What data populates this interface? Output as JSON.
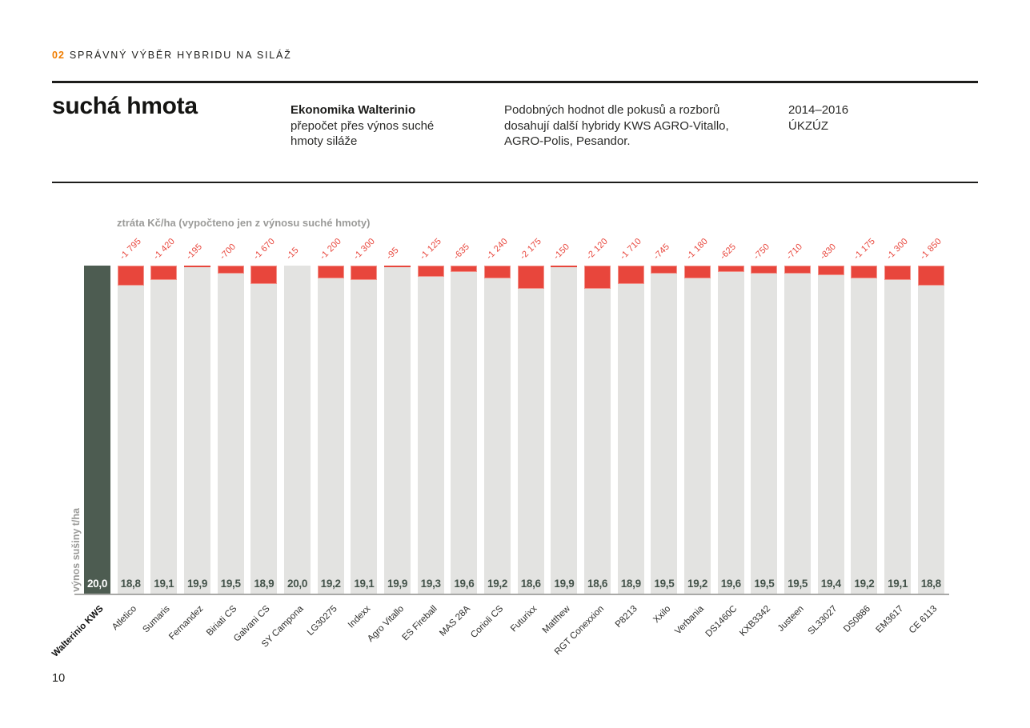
{
  "header": {
    "kicker_number": "02",
    "kicker_title": "SPRÁVNÝ VÝBĚR HYBRIDU NA SILÁŽ"
  },
  "intro": {
    "title": "suchá hmota",
    "subtitle_bold": "Ekonomika Walterinio",
    "subtitle_lines": [
      "přepočet přes výnos suché",
      "hmoty siláže"
    ],
    "description_lines": [
      "Podobných hodnot dle pokusů a rozborů",
      "dosahují další hybridy KWS AGRO-Vitallo,",
      "AGRO-Polis, Pesandor."
    ],
    "period": "2014–2016",
    "source": "ÚKZÚZ"
  },
  "chart_data": {
    "type": "bar",
    "title": "ztráta Kč/ha (vypočteno jen z výnosu suché hmoty)",
    "ylabel": "výnos sušiny t/ha",
    "ylim": [
      0,
      20
    ],
    "reference_category": "Walterinio KWS",
    "reference_value": 20.0,
    "categories": [
      "Walterinio KWS",
      "Atletico",
      "Sumaris",
      "Fernandez",
      "Biriati CS",
      "Galvani CS",
      "SY Campona",
      "LG30275",
      "Indexx",
      "Agro Vitallo",
      "ES Fireball",
      "MAS 28A",
      "Corioli CS",
      "Futurixx",
      "Matthew",
      "RGT Conexxion",
      "P8213",
      "Xxilo",
      "Verbania",
      "DS1460C",
      "KXB3342",
      "Justeen",
      "SL33027",
      "DS0886",
      "EM3617",
      "CE 6113"
    ],
    "values": [
      20.0,
      18.8,
      19.1,
      19.9,
      19.5,
      18.9,
      20.0,
      19.2,
      19.1,
      19.9,
      19.3,
      19.6,
      19.2,
      18.6,
      19.9,
      18.6,
      18.9,
      19.5,
      19.2,
      19.6,
      19.5,
      19.5,
      19.4,
      19.2,
      19.1,
      18.8
    ],
    "value_labels": [
      "20,0",
      "18,8",
      "19,1",
      "19,9",
      "19,5",
      "18,9",
      "20,0",
      "19,2",
      "19,1",
      "19,9",
      "19,3",
      "19,6",
      "19,2",
      "18,6",
      "19,9",
      "18,6",
      "18,9",
      "19,5",
      "19,2",
      "19,6",
      "19,5",
      "19,5",
      "19,4",
      "19,2",
      "19,1",
      "18,8"
    ],
    "loss_kc_ha": [
      null,
      -1795,
      -1420,
      -195,
      -700,
      -1670,
      -15,
      -1200,
      -1300,
      -95,
      -1125,
      -635,
      -1240,
      -2175,
      -150,
      -2120,
      -1710,
      -745,
      -1180,
      -625,
      -750,
      -710,
      -830,
      -1175,
      -1300,
      -1850
    ],
    "loss_labels": [
      "",
      "-1 795",
      "-1 420",
      "-195",
      "-700",
      "-1 670",
      "-15",
      "-1 200",
      "-1 300",
      "-95",
      "-1 125",
      "-635",
      "-1 240",
      "-2 175",
      "-150",
      "-2 120",
      "-1 710",
      "-745",
      "-1 180",
      "-625",
      "-750",
      "-710",
      "-830",
      "-1 175",
      "-1 300",
      "-1 850"
    ],
    "colors": {
      "reference_bar": "#4d5c51",
      "bar": "#e3e3e1",
      "loss_segment": "#e8463c",
      "loss_segment_border": "#f2938b",
      "value_text": "#44534a",
      "reference_value_text": "#ffffff",
      "muted_label": "#9b9b99",
      "accent_orange": "#f07d00",
      "axis_line": "#a9a9a7",
      "text": "#1d1d1b"
    }
  },
  "footer": {
    "page_number": "10"
  }
}
